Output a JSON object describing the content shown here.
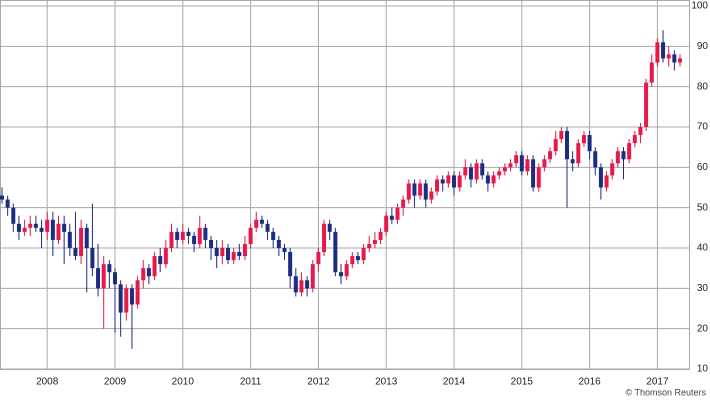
{
  "chart_data": {
    "type": "candlestick",
    "x": [
      "2007-05",
      "2007-06",
      "2007-07",
      "2007-08",
      "2007-09",
      "2007-10",
      "2007-11",
      "2007-12",
      "2008-01",
      "2008-02",
      "2008-03",
      "2008-04",
      "2008-05",
      "2008-06",
      "2008-07",
      "2008-08",
      "2008-09",
      "2008-10",
      "2008-11",
      "2008-12",
      "2009-01",
      "2009-02",
      "2009-03",
      "2009-04",
      "2009-05",
      "2009-06",
      "2009-07",
      "2009-08",
      "2009-09",
      "2009-10",
      "2009-11",
      "2009-12",
      "2010-01",
      "2010-02",
      "2010-03",
      "2010-04",
      "2010-05",
      "2010-06",
      "2010-07",
      "2010-08",
      "2010-09",
      "2010-10",
      "2010-11",
      "2010-12",
      "2011-01",
      "2011-02",
      "2011-03",
      "2011-04",
      "2011-05",
      "2011-06",
      "2011-07",
      "2011-08",
      "2011-09",
      "2011-10",
      "2011-11",
      "2011-12",
      "2012-01",
      "2012-02",
      "2012-03",
      "2012-04",
      "2012-05",
      "2012-06",
      "2012-07",
      "2012-08",
      "2012-09",
      "2012-10",
      "2012-11",
      "2012-12",
      "2013-01",
      "2013-02",
      "2013-03",
      "2013-04",
      "2013-05",
      "2013-06",
      "2013-07",
      "2013-08",
      "2013-09",
      "2013-10",
      "2013-11",
      "2013-12",
      "2014-01",
      "2014-02",
      "2014-03",
      "2014-04",
      "2014-05",
      "2014-06",
      "2014-07",
      "2014-08",
      "2014-09",
      "2014-10",
      "2014-11",
      "2014-12",
      "2015-01",
      "2015-02",
      "2015-03",
      "2015-04",
      "2015-05",
      "2015-06",
      "2015-07",
      "2015-08",
      "2015-09",
      "2015-10",
      "2015-11",
      "2015-12",
      "2016-01",
      "2016-02",
      "2016-03",
      "2016-04",
      "2016-05",
      "2016-06",
      "2016-07",
      "2016-08",
      "2016-09",
      "2016-10",
      "2016-11",
      "2016-12",
      "2017-01",
      "2017-02",
      "2017-03",
      "2017-04",
      "2017-05"
    ],
    "open": [
      53,
      52,
      50,
      46,
      44,
      45,
      46,
      45,
      44,
      47,
      42,
      46,
      44,
      40,
      38,
      45,
      40,
      35,
      30,
      36,
      34,
      31,
      24,
      30,
      26,
      32,
      35,
      33,
      38,
      36,
      40,
      44,
      42,
      44,
      43,
      41,
      45,
      42,
      40,
      38,
      40,
      37,
      39,
      38,
      41,
      45,
      47,
      46,
      44,
      42,
      40,
      39,
      33,
      29,
      32,
      30,
      36,
      39,
      46,
      44,
      34,
      33,
      36,
      38,
      37,
      40,
      41,
      42,
      44,
      48,
      47,
      50,
      52,
      56,
      53,
      56,
      52,
      54,
      57,
      56,
      58,
      55,
      58,
      60,
      57,
      61,
      58,
      56,
      58,
      59,
      60,
      61,
      63,
      59,
      62,
      55,
      60,
      62,
      64,
      67,
      69,
      62,
      61,
      66,
      68,
      64,
      60,
      55,
      58,
      61,
      64,
      62,
      66,
      68,
      70,
      81,
      86,
      91,
      87,
      88,
      86
    ],
    "high": [
      55,
      53,
      51,
      48,
      47,
      48,
      48,
      47,
      49,
      49,
      48,
      48,
      46,
      49,
      47,
      46,
      51,
      41,
      38,
      37,
      35,
      32,
      31,
      31,
      33,
      37,
      36,
      39,
      40,
      42,
      46,
      45,
      46,
      45,
      44,
      48,
      46,
      43,
      42,
      42,
      41,
      40,
      41,
      43,
      46,
      49,
      48,
      47,
      45,
      43,
      41,
      40,
      35,
      34,
      33,
      37,
      40,
      47,
      47,
      45,
      36,
      37,
      39,
      39,
      41,
      43,
      44,
      45,
      49,
      50,
      51,
      53,
      57,
      57,
      57,
      57,
      55,
      58,
      58,
      59,
      59,
      59,
      62,
      61,
      62,
      62,
      59,
      59,
      60,
      61,
      62,
      64,
      64,
      63,
      63,
      61,
      63,
      65,
      69,
      70,
      70,
      64,
      67,
      69,
      69,
      65,
      61,
      59,
      62,
      65,
      65,
      67,
      69,
      71,
      82,
      88,
      92,
      94,
      90,
      89,
      88
    ],
    "low": [
      51,
      48,
      44,
      42,
      43,
      43,
      44,
      40,
      42,
      38,
      41,
      36,
      38,
      37,
      36,
      29,
      33,
      28,
      20,
      30,
      19,
      18,
      22,
      15,
      25,
      30,
      31,
      32,
      34,
      35,
      39,
      40,
      41,
      41,
      39,
      40,
      40,
      37,
      35,
      36,
      36,
      36,
      37,
      37,
      40,
      44,
      45,
      42,
      40,
      38,
      37,
      30,
      28,
      28,
      28,
      29,
      34,
      38,
      42,
      33,
      31,
      32,
      35,
      36,
      36,
      39,
      40,
      41,
      43,
      46,
      46,
      48,
      51,
      50,
      52,
      50,
      51,
      53,
      54,
      55,
      53,
      54,
      57,
      55,
      56,
      57,
      54,
      55,
      57,
      58,
      59,
      60,
      58,
      58,
      54,
      54,
      59,
      61,
      63,
      66,
      50,
      59,
      60,
      65,
      62,
      58,
      52,
      54,
      57,
      60,
      57,
      61,
      65,
      66,
      69,
      80,
      85,
      86,
      85,
      84,
      85
    ],
    "close": [
      52,
      50,
      46,
      44,
      45,
      46,
      45,
      44,
      47,
      42,
      46,
      44,
      40,
      38,
      45,
      40,
      35,
      30,
      36,
      34,
      31,
      24,
      30,
      26,
      32,
      35,
      33,
      38,
      36,
      40,
      44,
      42,
      44,
      43,
      41,
      45,
      42,
      40,
      38,
      40,
      37,
      39,
      38,
      41,
      45,
      47,
      46,
      44,
      42,
      40,
      39,
      33,
      29,
      32,
      30,
      36,
      39,
      46,
      44,
      34,
      33,
      36,
      38,
      37,
      40,
      41,
      42,
      44,
      48,
      47,
      50,
      52,
      56,
      53,
      56,
      52,
      54,
      57,
      56,
      58,
      55,
      58,
      60,
      57,
      61,
      58,
      56,
      58,
      59,
      60,
      61,
      63,
      59,
      62,
      55,
      60,
      62,
      64,
      67,
      69,
      62,
      61,
      66,
      68,
      64,
      60,
      55,
      58,
      61,
      64,
      62,
      66,
      68,
      70,
      81,
      86,
      91,
      87,
      88,
      86,
      87
    ],
    "up_color": "#e5194b",
    "down_color": "#1c2c80",
    "xticks": [
      {
        "value": "2008-01",
        "label": "2008"
      },
      {
        "value": "2009-01",
        "label": "2009"
      },
      {
        "value": "2010-01",
        "label": "2010"
      },
      {
        "value": "2011-01",
        "label": "2011"
      },
      {
        "value": "2012-01",
        "label": "2012"
      },
      {
        "value": "2013-01",
        "label": "2013"
      },
      {
        "value": "2014-01",
        "label": "2014"
      },
      {
        "value": "2015-01",
        "label": "2015"
      },
      {
        "value": "2016-01",
        "label": "2016"
      },
      {
        "value": "2017-01",
        "label": "2017"
      }
    ],
    "ylim": [
      10,
      100
    ],
    "yticks": [
      10,
      20,
      30,
      40,
      50,
      60,
      70,
      80,
      90,
      100
    ],
    "grid": true,
    "credit": "© Thomson Reuters"
  }
}
